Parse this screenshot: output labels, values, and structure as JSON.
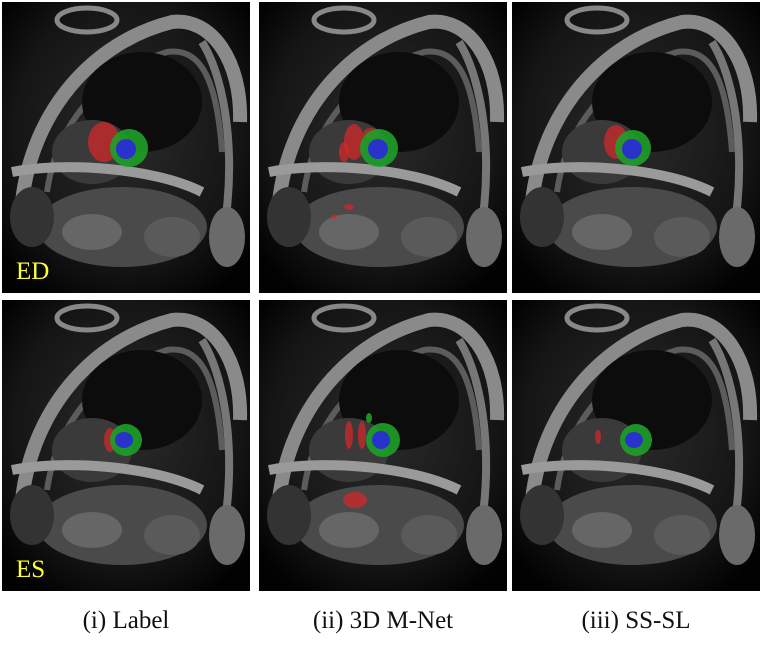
{
  "row_labels": [
    "ED",
    "ES"
  ],
  "columns": [
    "(i) Label",
    "(ii) 3D M-Net",
    "(iii) SS-SL"
  ]
}
